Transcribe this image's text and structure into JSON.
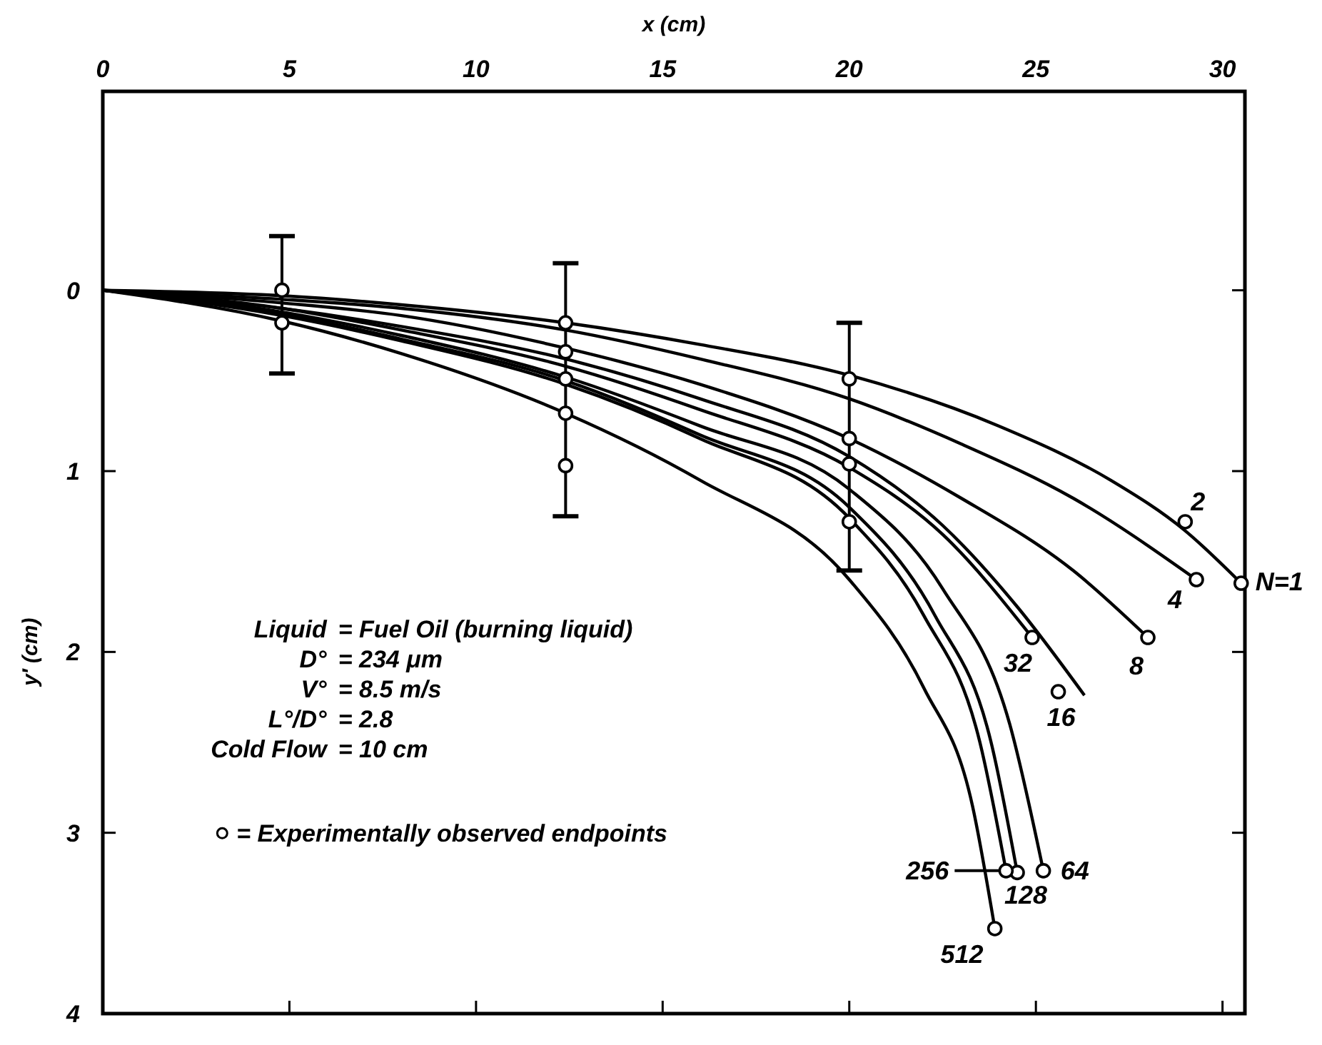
{
  "chart_data": {
    "type": "line",
    "xlabel": "x (cm)",
    "ylabel": "y′ (cm)",
    "xlim": [
      0,
      30.6
    ],
    "xticks": [
      0,
      5,
      10,
      15,
      20,
      25,
      30
    ],
    "ylim": [
      4,
      -1.1
    ],
    "yticks": [
      0,
      1,
      2,
      3,
      4
    ],
    "legend": "left",
    "series": [
      {
        "color": "#000000",
        "marker": "none",
        "x": [
          0,
          4.8,
          8,
          12.4,
          16,
          20,
          24,
          27,
          29,
          30.5
        ],
        "values": [
          0,
          0.03,
          0.08,
          0.18,
          0.3,
          0.47,
          0.75,
          1.05,
          1.33,
          1.62
        ]
      },
      {
        "color": "#000000",
        "marker": "none",
        "x": [
          0,
          4.8,
          8,
          12.4,
          16,
          20,
          23,
          26,
          29.3
        ],
        "values": [
          0,
          0.05,
          0.1,
          0.22,
          0.38,
          0.6,
          0.85,
          1.15,
          1.6
        ]
      },
      {
        "color": "#000000",
        "marker": "none",
        "x": [
          0,
          4.8,
          8,
          12.4,
          16,
          20,
          23,
          26,
          28
        ],
        "values": [
          0,
          0.07,
          0.14,
          0.32,
          0.52,
          0.82,
          1.15,
          1.55,
          1.92
        ]
      },
      {
        "color": "#000000",
        "marker": "none",
        "x": [
          0,
          4.8,
          8,
          12.4,
          16,
          20,
          22.5,
          24.5,
          26.3
        ],
        "values": [
          0,
          0.1,
          0.2,
          0.38,
          0.6,
          0.92,
          1.3,
          1.75,
          2.24
        ]
      },
      {
        "color": "#000000",
        "marker": "none",
        "x": [
          0,
          4.8,
          8,
          12.4,
          16,
          20,
          22.5,
          24.9
        ],
        "values": [
          0,
          0.1,
          0.22,
          0.42,
          0.66,
          0.98,
          1.35,
          1.92
        ]
      },
      {
        "color": "#000000",
        "marker": "none",
        "x": [
          0,
          4.8,
          8,
          12.4,
          16,
          20,
          22.5,
          24.3,
          25.2
        ],
        "values": [
          0,
          0.12,
          0.25,
          0.48,
          0.75,
          1.1,
          1.65,
          2.4,
          3.21
        ]
      },
      {
        "color": "#000000",
        "marker": "none",
        "x": [
          0,
          4.8,
          8,
          12.4,
          16,
          20,
          22.3,
          23.8,
          24.5
        ],
        "values": [
          0,
          0.13,
          0.27,
          0.5,
          0.8,
          1.2,
          1.8,
          2.5,
          3.22
        ]
      },
      {
        "color": "#000000",
        "marker": "none",
        "x": [
          0,
          4.8,
          8,
          12.4,
          16,
          20,
          22,
          23.5,
          24.2
        ],
        "values": [
          0,
          0.14,
          0.28,
          0.52,
          0.82,
          1.26,
          1.8,
          2.5,
          3.21
        ]
      },
      {
        "color": "#000000",
        "marker": "none",
        "x": [
          0,
          4.8,
          8,
          12.4,
          16,
          20,
          22,
          23.3,
          23.9
        ],
        "values": [
          0,
          0.17,
          0.35,
          0.68,
          1.05,
          1.6,
          2.2,
          2.85,
          3.53
        ]
      },
      {
        "type": "scatter",
        "name": "= Experimentally observed endpoints",
        "color": "#000000",
        "marker": "circle",
        "x": [
          30.5,
          29,
          29.3,
          28,
          25.6,
          24.9,
          25.2,
          24.5,
          24.2,
          23.9
        ],
        "values": [
          1.62,
          1.28,
          1.6,
          1.92,
          2.22,
          1.92,
          3.21,
          3.22,
          3.21,
          3.53
        ]
      },
      {
        "type": "scatter",
        "color": "#000000",
        "marker": "circle",
        "x": [
          4.8,
          4.8,
          12.4,
          12.4,
          12.4,
          12.4,
          12.4,
          20,
          20,
          20,
          20
        ],
        "values": [
          0,
          0.18,
          0.18,
          0.34,
          0.49,
          0.68,
          0.97,
          0.49,
          0.82,
          0.96,
          1.28
        ],
        "errors": [
          [
            -0.3,
            0.46
          ],
          null,
          [
            -0.15,
            1.25
          ],
          null,
          null,
          null,
          null,
          [
            0.18,
            1.55
          ],
          null,
          null,
          null
        ]
      }
    ],
    "annotations": [
      {
        "text": "N=1",
        "x": 30.5,
        "y": 1.62
      },
      {
        "text": "2",
        "x": 29,
        "y": 1.28
      },
      {
        "text": "4",
        "x": 29.3,
        "y": 1.6
      },
      {
        "text": "8",
        "x": 28,
        "y": 1.92
      },
      {
        "text": "16",
        "x": 25.6,
        "y": 2.22
      },
      {
        "text": "32",
        "x": 24.9,
        "y": 1.92
      },
      {
        "text": "64",
        "x": 25.2,
        "y": 3.21
      },
      {
        "text": "128",
        "x": 24.5,
        "y": 3.22
      },
      {
        "text": "256",
        "x": 24.2,
        "y": 3.21
      },
      {
        "text": "512",
        "x": 23.9,
        "y": 3.53
      },
      "Liquid = Fuel Oil (burning liquid)",
      "D° = 234 μm",
      "V° = 8.5 m/s",
      "L°/D° = 2.8",
      "Cold Flow = 10 cm"
    ]
  }
}
